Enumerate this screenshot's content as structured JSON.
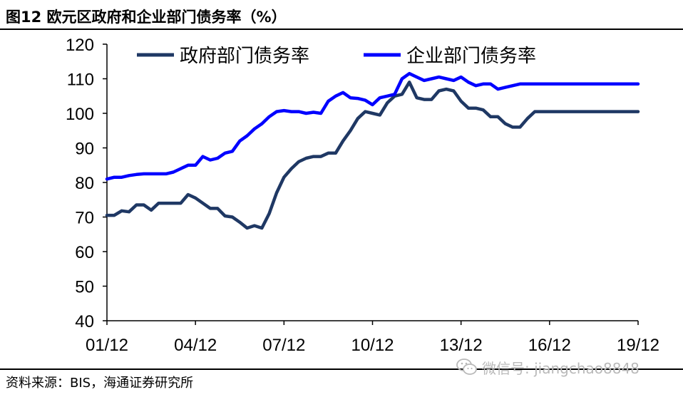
{
  "title": "图12 欧元区政府和企业部门债务率（%）",
  "source": "资料来源：BIS，海通证券研究所",
  "watermark": "微信号: jiangchao8848",
  "colors": {
    "government": "#1f3864",
    "corporate": "#0000ff"
  },
  "chart_data": {
    "type": "line",
    "x_ticks": [
      "01/12",
      "04/12",
      "07/12",
      "10/12",
      "13/12",
      "16/12",
      "19/12"
    ],
    "ylim": [
      40,
      120
    ],
    "y_ticks": [
      40,
      50,
      60,
      70,
      80,
      90,
      100,
      110,
      120
    ],
    "grid": false,
    "legend": "top",
    "x": [
      "2001-12",
      "2002-03",
      "2002-06",
      "2002-09",
      "2002-12",
      "2003-03",
      "2003-06",
      "2003-09",
      "2003-12",
      "2004-03",
      "2004-06",
      "2004-09",
      "2004-12",
      "2005-03",
      "2005-06",
      "2005-09",
      "2005-12",
      "2006-03",
      "2006-06",
      "2006-09",
      "2006-12",
      "2007-03",
      "2007-06",
      "2007-09",
      "2007-12",
      "2008-03",
      "2008-06",
      "2008-09",
      "2008-12",
      "2009-03",
      "2009-06",
      "2009-09",
      "2009-12",
      "2010-03",
      "2010-06",
      "2010-09",
      "2010-12",
      "2011-03",
      "2011-06",
      "2011-09",
      "2011-12",
      "2012-03",
      "2012-06",
      "2012-09",
      "2012-12",
      "2013-03",
      "2013-06",
      "2013-09",
      "2013-12",
      "2014-03",
      "2014-06",
      "2014-09",
      "2014-12",
      "2015-03",
      "2015-06",
      "2015-09",
      "2015-12",
      "2016-03",
      "2016-06",
      "2016-09",
      "2016-12",
      "2017-03",
      "2017-06",
      "2017-09",
      "2017-12",
      "2018-03",
      "2018-06",
      "2018-09",
      "2018-12",
      "2019-03",
      "2019-06",
      "2019-09",
      "2019-12"
    ],
    "series": [
      {
        "name": "政府部门债务率",
        "values": [
          70.5,
          70.5,
          71.8,
          71.5,
          73.5,
          73.5,
          72.0,
          74.0,
          74.0,
          74.0,
          74.0,
          76.5,
          75.5,
          74.0,
          72.5,
          72.5,
          70.3,
          70.0,
          68.5,
          66.8,
          67.5,
          66.8,
          71.0,
          77.0,
          81.5,
          84.0,
          86.0,
          87.0,
          87.5,
          87.5,
          88.5,
          88.5,
          92.0,
          95.0,
          98.5,
          100.5,
          100.0,
          99.5,
          103.0,
          105.0,
          105.5,
          109.0,
          104.5,
          104.0,
          104.0,
          106.5,
          107.0,
          106.5,
          103.5,
          101.5,
          101.5,
          101.0,
          99.0,
          99.0,
          97.0,
          96.0,
          96.0,
          98.5,
          100.5,
          100.5,
          100.5,
          100.5,
          100.5,
          100.5,
          100.5,
          100.5,
          100.5,
          100.5,
          100.5,
          100.5,
          100.5,
          100.5,
          100.5
        ]
      },
      {
        "name": "企业部门债务率",
        "values": [
          81.0,
          81.5,
          81.5,
          82.0,
          82.3,
          82.5,
          82.5,
          82.5,
          82.5,
          83.0,
          84.0,
          85.0,
          85.0,
          87.5,
          86.5,
          87.0,
          88.5,
          89.0,
          92.0,
          93.5,
          95.5,
          97.0,
          99.0,
          100.5,
          100.8,
          100.5,
          100.5,
          100.0,
          100.3,
          100.0,
          103.5,
          105.0,
          106.0,
          104.5,
          104.3,
          103.8,
          102.5,
          104.5,
          105.0,
          105.5,
          110.0,
          111.5,
          110.5,
          109.5,
          110.0,
          110.5,
          110.0,
          109.5,
          110.5,
          109.0,
          108.0,
          108.5,
          108.5,
          107.0,
          107.5,
          108.0,
          108.5,
          108.5,
          108.5,
          108.5,
          108.5,
          108.5,
          108.5,
          108.5,
          108.5,
          108.5,
          108.5,
          108.5,
          108.5,
          108.5,
          108.5,
          108.5,
          108.5
        ]
      }
    ]
  }
}
